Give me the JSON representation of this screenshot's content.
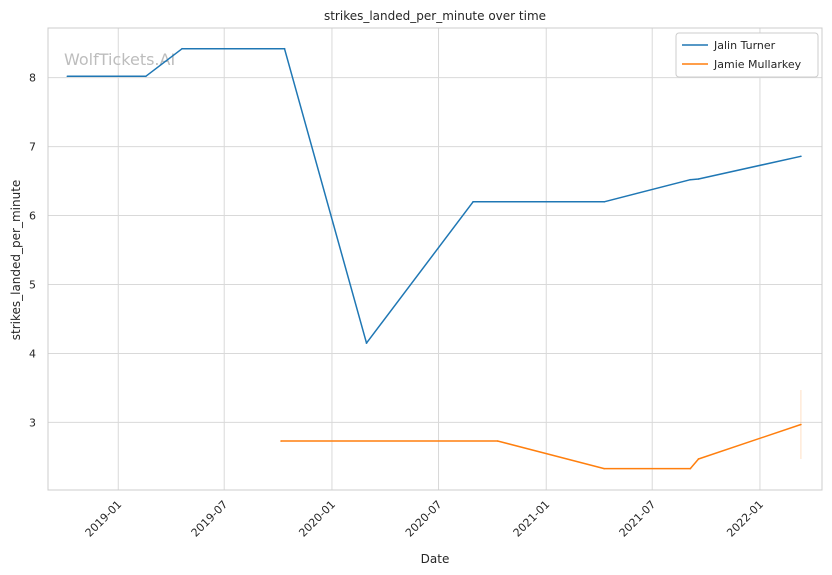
{
  "watermark": "WolfTickets.AI",
  "chart_data": {
    "type": "line",
    "title": "strikes_landed_per_minute over time",
    "xlabel": "Date",
    "ylabel": "strikes_landed_per_minute",
    "xlim": [
      "2018-09-03",
      "2022-04-17"
    ],
    "ylim": [
      2.02,
      8.72
    ],
    "x_ticks": [
      "2019-01",
      "2019-07",
      "2020-01",
      "2020-07",
      "2021-01",
      "2021-07",
      "2022-01"
    ],
    "y_ticks": [
      3,
      4,
      5,
      6,
      7,
      8
    ],
    "grid": true,
    "legend_position": "top-right",
    "series": [
      {
        "name": "Jalin Turner",
        "color": "#1f77b4",
        "points": [
          {
            "x": "2018-10-06",
            "y": 8.02
          },
          {
            "x": "2019-02-17",
            "y": 8.02
          },
          {
            "x": "2019-04-20",
            "y": 8.42
          },
          {
            "x": "2019-10-12",
            "y": 8.42
          },
          {
            "x": "2020-02-29",
            "y": 4.15
          },
          {
            "x": "2020-08-29",
            "y": 6.2
          },
          {
            "x": "2021-04-10",
            "y": 6.2
          },
          {
            "x": "2021-09-04",
            "y": 6.52
          },
          {
            "x": "2021-09-18",
            "y": 6.53
          },
          {
            "x": "2022-03-12",
            "y": 6.86
          }
        ]
      },
      {
        "name": "Jamie Mullarkey",
        "color": "#ff7f0e",
        "points": [
          {
            "x": "2019-10-06",
            "y": 2.73
          },
          {
            "x": "2020-10-10",
            "y": 2.73
          },
          {
            "x": "2021-04-10",
            "y": 2.33
          },
          {
            "x": "2021-09-04",
            "y": 2.33
          },
          {
            "x": "2021-09-18",
            "y": 2.47
          },
          {
            "x": "2022-03-12",
            "y": 2.97
          }
        ]
      }
    ]
  }
}
